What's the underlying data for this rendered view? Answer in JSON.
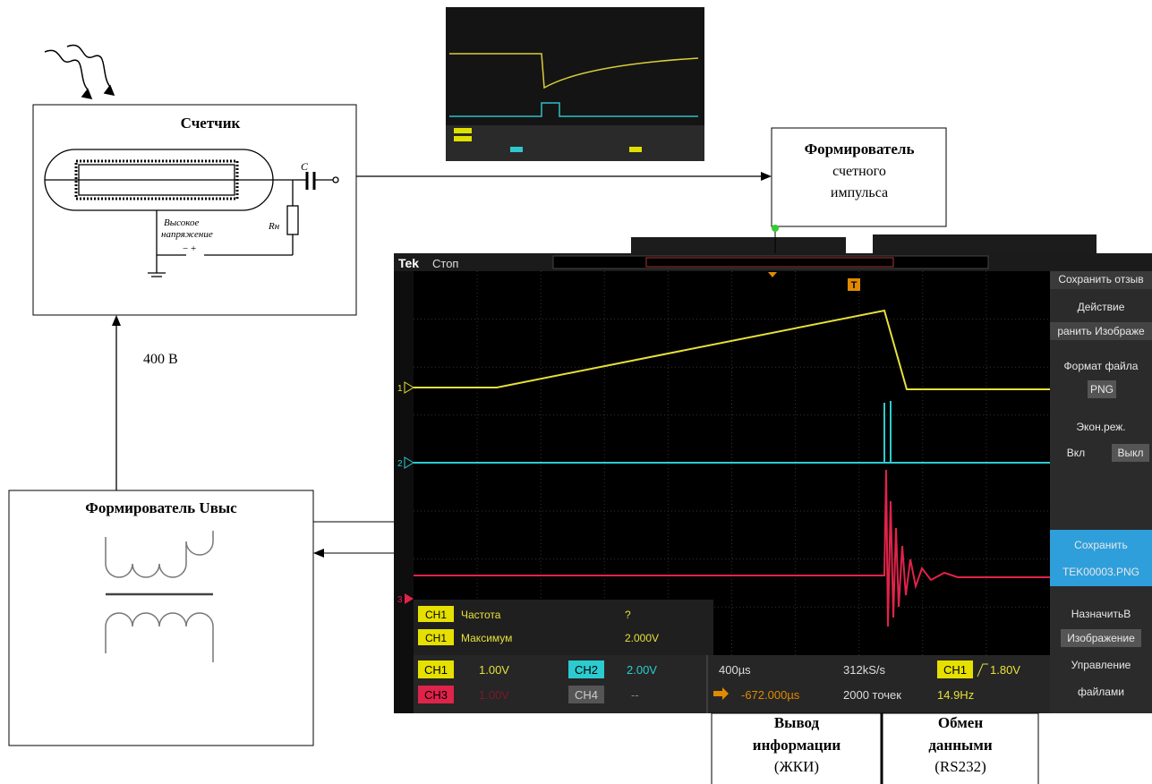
{
  "counter": {
    "title": "Счетчик",
    "capacitor": "C",
    "resistor": "Rн",
    "hv_lines": [
      "Высокое",
      "напряжение"
    ]
  },
  "voltage": "400 В",
  "hv_former": {
    "title": "Формирователь Uвыс"
  },
  "pulse_former": {
    "lines": [
      "Формирователь",
      "счетного",
      "импульса"
    ]
  },
  "lcd": {
    "lines": [
      "Вывод",
      "информации",
      "(ЖКИ)"
    ]
  },
  "rs232": {
    "lines": [
      "Обмен",
      "данными",
      "(RS232)"
    ]
  },
  "scope": {
    "brand": "Tek",
    "state": "Стоп",
    "trigger_marker": "T",
    "channel_markers": [
      "1",
      "2",
      "3"
    ],
    "menu": [
      "Сохранить отзыв",
      "Действие",
      "ранить Изображе",
      "Формат файла",
      "PNG",
      "Экон.реж.",
      "Вкл",
      "Выкл",
      "Сохранить",
      "TEK00003.PNG",
      "НазначитьВ",
      "Изображение",
      "Управление",
      "файлами"
    ],
    "measurements": [
      [
        "CH1",
        "Частота",
        "?"
      ],
      [
        "CH1",
        "Максимум",
        "2.000V"
      ]
    ],
    "channels": [
      [
        "CH1",
        "1.00V"
      ],
      [
        "CH2",
        "2.00V"
      ],
      [
        "CH3",
        "1.00V"
      ],
      [
        "CH4",
        "--"
      ]
    ],
    "horizontal": {
      "scale": "400µs",
      "rate": "312kS/s",
      "position": "-672.000µs",
      "points": "2000 точек"
    },
    "trigger": {
      "source": "CH1",
      "level": "1.80V",
      "freq": "14.9Hz"
    }
  }
}
